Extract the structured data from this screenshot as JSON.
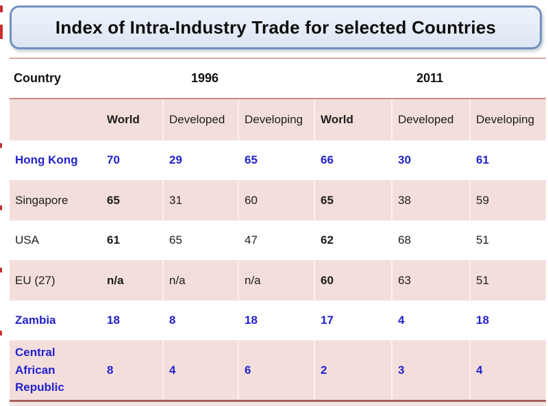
{
  "title": "Index of Intra-Industry Trade for selected Countries",
  "table": {
    "country_header": "Country",
    "year_groups": [
      "1996",
      "2011"
    ],
    "sub_headers": [
      "World",
      "Developed",
      "Developing",
      "World",
      "Developed",
      "Developing"
    ],
    "rows": [
      {
        "country": "Hong Kong",
        "values": [
          "70",
          "29",
          "65",
          "66",
          "30",
          "61"
        ],
        "highlight": true
      },
      {
        "country": "Singapore",
        "values": [
          "65",
          "31",
          "60",
          "65",
          "38",
          "59"
        ],
        "highlight": false
      },
      {
        "country": "USA",
        "values": [
          "61",
          "65",
          "47",
          "62",
          "68",
          "51"
        ],
        "highlight": false
      },
      {
        "country": "EU (27)",
        "values": [
          "n/a",
          "n/a",
          "n/a",
          "60",
          "63",
          "51"
        ],
        "highlight": false
      },
      {
        "country": "Zambia",
        "values": [
          "18",
          "8",
          "18",
          "17",
          "4",
          "18"
        ],
        "highlight": true
      },
      {
        "country": "Central African Republic",
        "values": [
          "8",
          "4",
          "6",
          "2",
          "3",
          "4"
        ],
        "highlight": true
      }
    ]
  },
  "colors": {
    "highlight_text_blue": "#2121cd",
    "pink_row_background": "#f4dedc",
    "title_fill": "#e3ebf6",
    "title_border": "#7190bf",
    "rule_light": "#d9a7a4",
    "rule_mid": "#c98b88",
    "rule_dark": "#a85f5c",
    "edge_mark_red": "#cc2f2f"
  }
}
